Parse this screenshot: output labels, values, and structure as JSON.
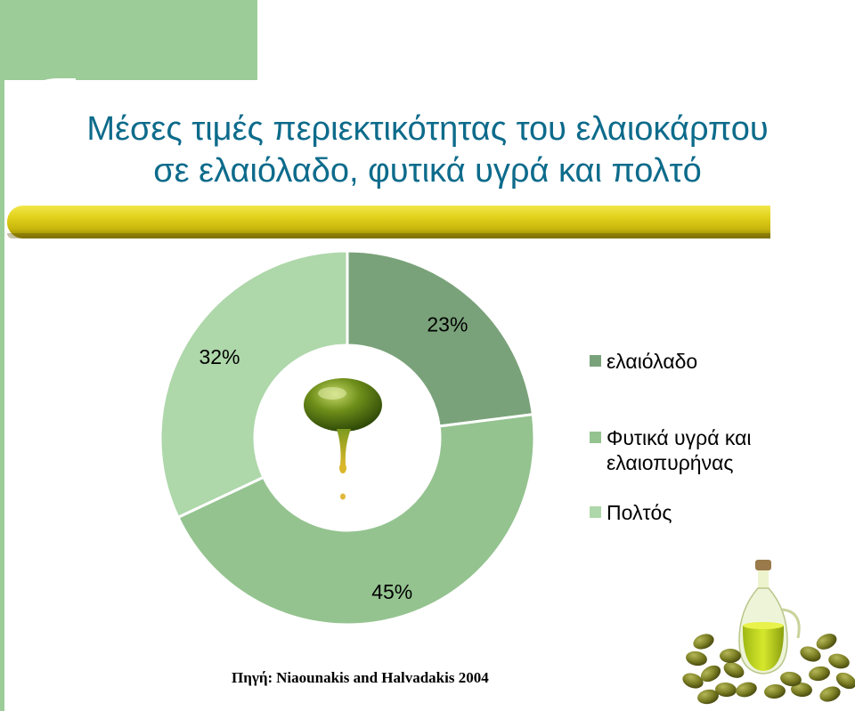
{
  "title": {
    "line1": "Μέσες τιμές περιεκτικότητας του ελαιοκάρπου",
    "line2": "σε ελαιόλαδο, φυτικά υγρά και πολτό"
  },
  "chart_data": {
    "type": "pie",
    "style": "donut",
    "categories": [
      "ελαιόλαδο",
      "Φυτικά υγρά και ελαιοπυρήνας",
      "Πολτός"
    ],
    "values": [
      23,
      45,
      32
    ],
    "data_labels": [
      "23%",
      "45%",
      "32%"
    ],
    "colors": [
      "#7aa27a",
      "#94c38f",
      "#aed7aa"
    ],
    "legend_position": "right"
  },
  "source": {
    "label": "Πηγή:",
    "text": "Niaounakis and Halvadakis 2004"
  },
  "colors": {
    "accent_green": "#9ccc98",
    "title_blue": "#0d6b8b",
    "rule_gold": "#e2d21c",
    "oil": "#6f8f1a"
  },
  "icons": [
    "olive-oil-drop-icon",
    "olive-oil-bottle-icon"
  ]
}
